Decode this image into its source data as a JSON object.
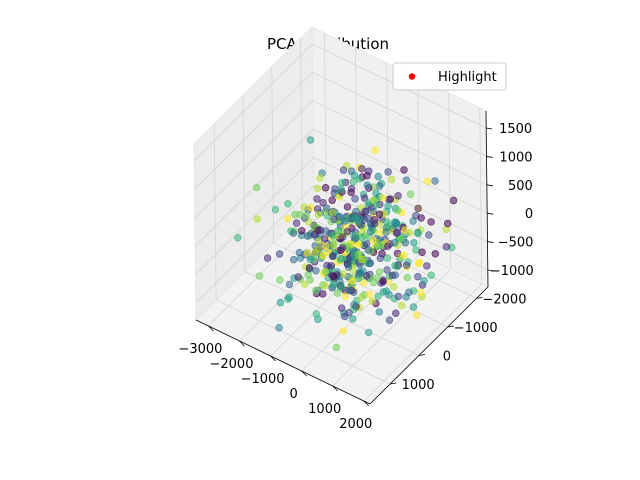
{
  "chart_data": {
    "type": "scatter",
    "projection": "3d",
    "title": "PCA Distribution",
    "xlabel": "",
    "ylabel": "",
    "zlabel": "",
    "xlim": [
      -3400,
      2200
    ],
    "ylim": [
      -2400,
      1700
    ],
    "zlim": [
      -1300,
      1800
    ],
    "x_ticks": [
      -3000,
      -2000,
      -1000,
      0,
      1000,
      2000
    ],
    "x_tick_labels": [
      "−3000",
      "−2000",
      "−1000",
      "0",
      "1000",
      "2000"
    ],
    "y_ticks": [
      -2000,
      -1000,
      0,
      1000
    ],
    "y_tick_labels": [
      "−2000",
      "−1000",
      "0",
      "1000"
    ],
    "z_ticks": [
      -1000,
      -500,
      0,
      500,
      1000,
      1500
    ],
    "z_tick_labels": [
      "−1000",
      "−500",
      "0",
      "500",
      "1000",
      "1500"
    ],
    "grid": true,
    "pane_color": "#f2f2f2",
    "colormap": "viridis",
    "marker_alpha": 0.55,
    "legend": {
      "placement": "top-right",
      "entries": [
        {
          "label": "Highlight",
          "color": "#ff0000"
        }
      ]
    },
    "n_points": 500,
    "random_seed": 7,
    "x_mean": 0,
    "x_std": 900,
    "y_mean": -200,
    "y_std": 750,
    "z_mean": 0,
    "z_std": 500
  }
}
